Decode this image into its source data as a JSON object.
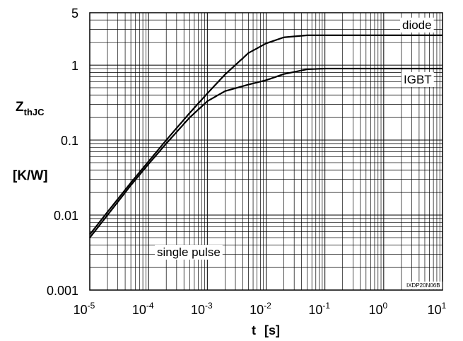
{
  "chart_data": {
    "type": "line",
    "xscale": "log",
    "yscale": "log",
    "xlim": [
      1e-05,
      10
    ],
    "ylim": [
      0.001,
      5
    ],
    "grid": true,
    "xlabel_main": "t",
    "xlabel_unit": "[s]",
    "ylabel_main": "Z",
    "ylabel_sub": "thJC",
    "ylabel_unit": "[K/W]",
    "x_ticks": [
      {
        "value": 1e-05,
        "base": "10",
        "exp": "-5"
      },
      {
        "value": 0.0001,
        "base": "10",
        "exp": "-4"
      },
      {
        "value": 0.001,
        "base": "10",
        "exp": "-3"
      },
      {
        "value": 0.01,
        "base": "10",
        "exp": "-2"
      },
      {
        "value": 0.1,
        "base": "10",
        "exp": "-1"
      },
      {
        "value": 1,
        "base": "10",
        "exp": "0"
      },
      {
        "value": 10,
        "base": "10",
        "exp": "1"
      }
    ],
    "y_ticks": [
      {
        "value": 0.001,
        "label": "0.001"
      },
      {
        "value": 0.01,
        "label": "0.01"
      },
      {
        "value": 0.1,
        "label": "0.1"
      },
      {
        "value": 1,
        "label": "1"
      },
      {
        "value": 5,
        "label": "5"
      }
    ],
    "series": [
      {
        "name": "diode",
        "x": [
          1e-05,
          2e-05,
          5e-05,
          0.0001,
          0.0002,
          0.0005,
          0.001,
          0.002,
          0.005,
          0.01,
          0.02,
          0.05,
          0.1,
          1,
          10
        ],
        "y": [
          0.0055,
          0.011,
          0.027,
          0.052,
          0.1,
          0.23,
          0.42,
          0.75,
          1.45,
          1.95,
          2.35,
          2.5,
          2.5,
          2.5,
          2.5
        ]
      },
      {
        "name": "IGBT",
        "x": [
          1e-05,
          2e-05,
          5e-05,
          0.0001,
          0.0002,
          0.0005,
          0.001,
          0.002,
          0.005,
          0.01,
          0.02,
          0.05,
          0.1,
          1,
          10
        ],
        "y": [
          0.005,
          0.01,
          0.025,
          0.048,
          0.09,
          0.2,
          0.33,
          0.45,
          0.55,
          0.63,
          0.76,
          0.88,
          0.9,
          0.9,
          0.9
        ]
      }
    ],
    "annotations": {
      "single_pulse": "single pulse",
      "code": "IXDP20N06B"
    }
  }
}
